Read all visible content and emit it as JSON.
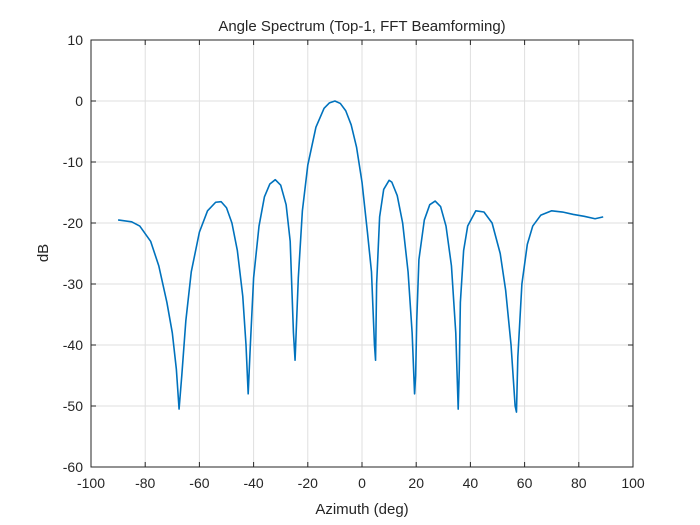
{
  "chart_data": {
    "type": "line",
    "title": "Angle Spectrum (Top-1, FFT Beamforming)",
    "xlabel": "Azimuth (deg)",
    "ylabel": "dB",
    "xlim": [
      -100,
      100
    ],
    "ylim": [
      -60,
      10
    ],
    "xticks": [
      -100,
      -80,
      -60,
      -40,
      -20,
      0,
      20,
      40,
      60,
      80,
      100
    ],
    "yticks": [
      -60,
      -50,
      -40,
      -30,
      -20,
      -10,
      0,
      10
    ],
    "xtick_labels": [
      "-100",
      "-80",
      "-60",
      "-40",
      "-20",
      "0",
      "20",
      "40",
      "60",
      "80",
      "100"
    ],
    "ytick_labels": [
      "-60",
      "-50",
      "-40",
      "-30",
      "-20",
      "-10",
      "0",
      "10"
    ],
    "grid": true,
    "line_color": "#0072BD",
    "series": [
      {
        "name": "Angle Spectrum",
        "x": [
          -90,
          -85,
          -82,
          -78,
          -75,
          -72,
          -70,
          -68.5,
          -67.5,
          -66.5,
          -65,
          -63,
          -60,
          -57,
          -54,
          -52,
          -50,
          -48,
          -46,
          -44,
          -42.8,
          -42,
          -41.2,
          -40,
          -38,
          -36,
          -34,
          -32,
          -30,
          -28,
          -26.5,
          -25.3,
          -24.7,
          -23.5,
          -22,
          -20,
          -17,
          -14,
          -12,
          -10,
          -8,
          -6,
          -4,
          -2,
          0,
          2,
          3.5,
          4.6,
          5,
          5.4,
          6.5,
          8,
          10,
          11,
          13,
          15,
          17,
          18.5,
          19.4,
          19.8,
          20.2,
          21,
          23,
          25,
          27,
          29,
          31,
          33,
          34.6,
          35.5,
          35.9,
          36.3,
          37.5,
          39,
          42,
          45,
          48,
          51,
          53,
          55,
          56.5,
          57,
          57.5,
          59,
          61,
          63,
          66,
          70,
          74,
          78,
          82,
          86,
          89
        ],
        "y": [
          -19.5,
          -19.8,
          -20.5,
          -23,
          -27,
          -33,
          -38,
          -44,
          -50.5,
          -45,
          -36,
          -28,
          -21.5,
          -18,
          -16.6,
          -16.5,
          -17.5,
          -20,
          -24.5,
          -32,
          -40,
          -48,
          -40,
          -29,
          -20.5,
          -15.7,
          -13.6,
          -12.9,
          -13.8,
          -17,
          -23,
          -38,
          -42.5,
          -29,
          -18,
          -10.5,
          -4.3,
          -1.2,
          -0.3,
          0,
          -0.4,
          -1.6,
          -3.9,
          -7.6,
          -13.3,
          -21.5,
          -28,
          -40,
          -42.5,
          -30,
          -19,
          -14.5,
          -13,
          -13.3,
          -15.5,
          -20,
          -28,
          -38,
          -48,
          -45,
          -36,
          -26,
          -19.5,
          -17,
          -16.4,
          -17.3,
          -20.5,
          -27,
          -38,
          -50.5,
          -44,
          -33,
          -24.5,
          -20.5,
          -18,
          -18.2,
          -20,
          -25,
          -31,
          -40,
          -50,
          -51,
          -42,
          -30,
          -23.5,
          -20.5,
          -18.7,
          -18,
          -18.2,
          -18.6,
          -18.9,
          -19.3,
          -19
        ]
      }
    ]
  }
}
